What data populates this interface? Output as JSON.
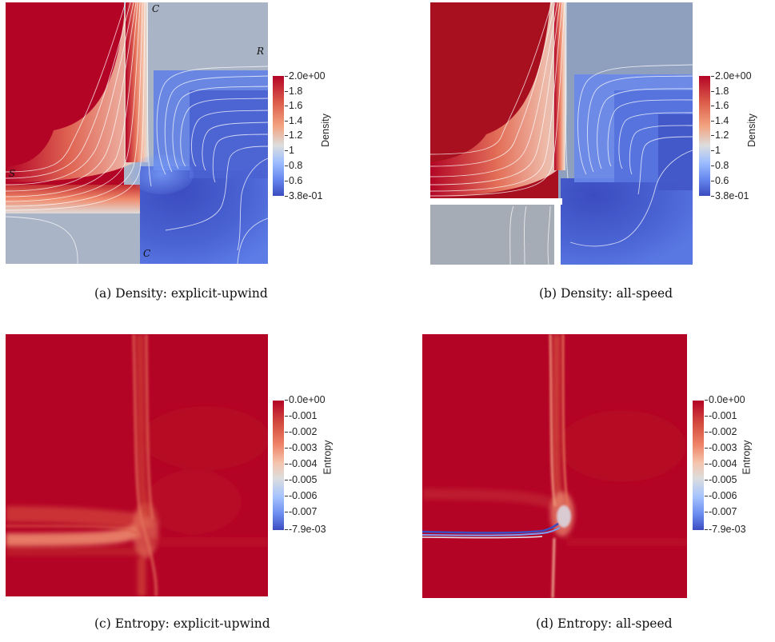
{
  "panels": [
    {
      "caption": "(a) Density: explicit-upwind",
      "colorbar": {
        "title": "Density",
        "ticks": [
          "2.0e+00",
          "1.8",
          "1.6",
          "1.4",
          "1.2",
          "1",
          "0.8",
          "0.6",
          "3.8e-01"
        ]
      },
      "labels": {
        "c_top": "C",
        "c_bottom": "C",
        "r": "R",
        "s": "S"
      }
    },
    {
      "caption": "(b) Density: all-speed",
      "colorbar": {
        "title": "Density",
        "ticks": [
          "2.0e+00",
          "1.8",
          "1.6",
          "1.4",
          "1.2",
          "1",
          "0.8",
          "0.6",
          "3.8e-01"
        ]
      }
    },
    {
      "caption": "(c) Entropy: explicit-upwind",
      "colorbar": {
        "title": "Entropy",
        "ticks": [
          "0.0e+00",
          "-0.001",
          "-0.002",
          "-0.003",
          "-0.004",
          "-0.005",
          "-0.006",
          "-0.007",
          "-7.9e-03"
        ]
      }
    },
    {
      "caption": "(d) Entropy: all-speed",
      "colorbar": {
        "title": "Entropy",
        "ticks": [
          "0.0e+00",
          "-0.001",
          "-0.002",
          "-0.003",
          "-0.004",
          "-0.005",
          "-0.006",
          "-0.007",
          "-7.9e-03"
        ]
      }
    }
  ],
  "colors": {
    "dense_red": "#b40426",
    "light_gray": "#a7adb7",
    "blue_low": "#3b4cc0",
    "mid_gray": "#dcdddd"
  }
}
